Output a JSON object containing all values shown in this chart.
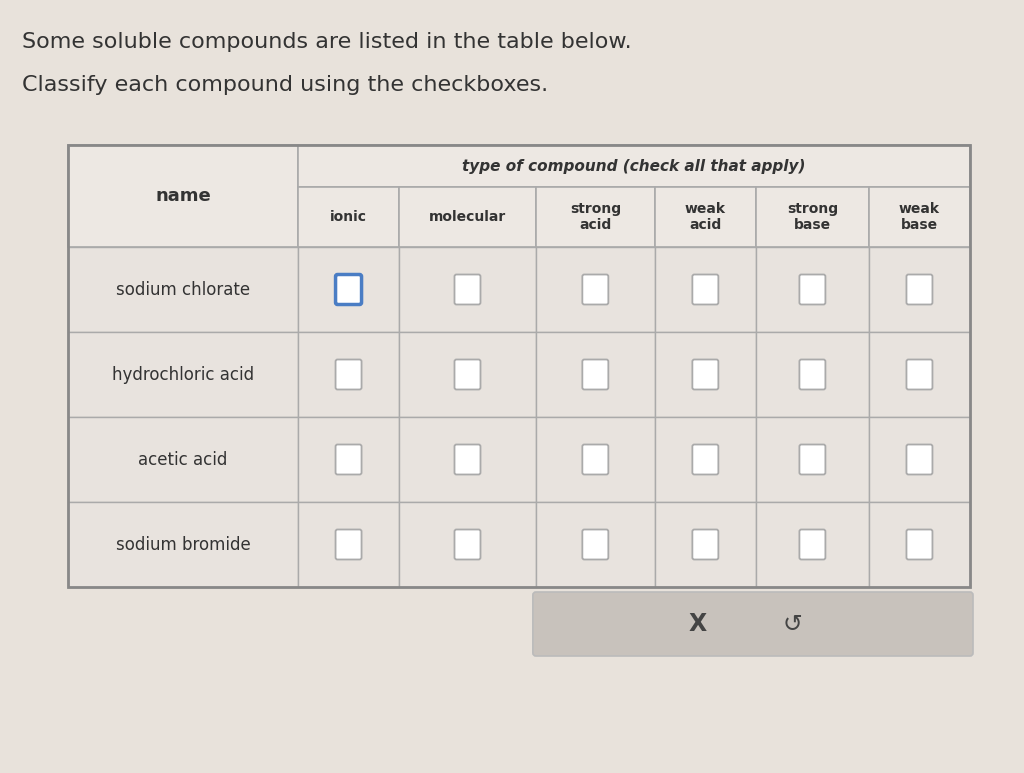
{
  "title_line1": "Some soluble compounds are listed in the table below.",
  "title_line2": "Classify each compound using the checkboxes.",
  "background_color": "#e8e2db",
  "header_span_text": "type of compound (check all that apply)",
  "name_header": "name",
  "col_headers": [
    "ionic",
    "molecular",
    "strong\nacid",
    "weak\nacid",
    "strong\nbase",
    "weak\nbase"
  ],
  "rows": [
    "sodium chlorate",
    "hydrochloric acid",
    "acetic acid",
    "sodium bromide"
  ],
  "ionic_checked_row": 0,
  "header_bg": "#ede8e3",
  "cell_bg_light": "#e8e3de",
  "cell_bg_dark": "#ddd8d2",
  "border_color": "#aaaaaa",
  "text_color": "#333333",
  "checkbox_border_normal": "#aaaaaa",
  "checkbox_border_ionic": "#4a7dc4",
  "bottom_bar_color": "#c8c2bc",
  "bottom_bar_text_x": "X",
  "bottom_bar_text_undo": "↺",
  "title_fontsize": 16,
  "name_fontsize": 13,
  "header_fontsize": 11,
  "subheader_fontsize": 10,
  "row_fontsize": 12
}
